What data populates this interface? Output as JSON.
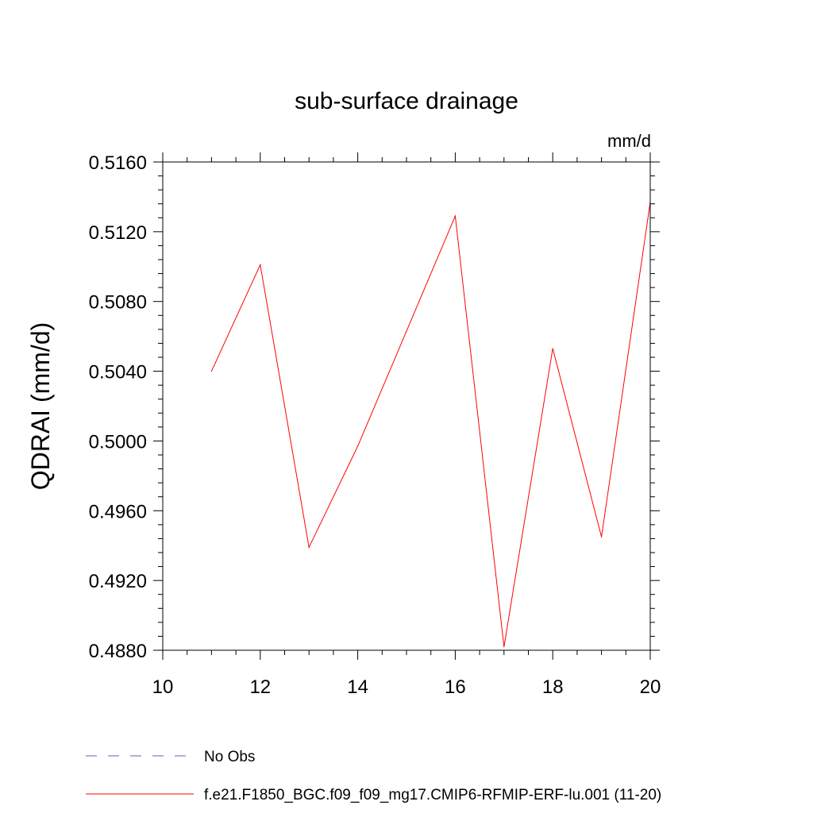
{
  "chart_data": {
    "type": "line",
    "title": "sub-surface drainage",
    "units_label": "mm/d",
    "ylabel": "QDRAI  (mm/d)",
    "xlabel": "",
    "xlim": [
      10,
      20
    ],
    "ylim": [
      0.488,
      0.516
    ],
    "x_ticks": [
      10,
      12,
      14,
      16,
      18,
      20
    ],
    "x_tick_labels": [
      "10",
      "12",
      "14",
      "16",
      "18",
      "20"
    ],
    "y_ticks": [
      0.488,
      0.492,
      0.496,
      0.5,
      0.504,
      0.508,
      0.512,
      0.516
    ],
    "y_tick_labels": [
      "0.4880",
      "0.4920",
      "0.4960",
      "0.5000",
      "0.5040",
      "0.5080",
      "0.5120",
      "0.5160"
    ],
    "grid": false,
    "legend_position": "bottom",
    "series": [
      {
        "name": "f.e21.F1850_BGC.f09_f09_mg17.CMIP6-RFMIP-ERF-lu.001 (11-20)",
        "color": "#ff0000",
        "style": "solid",
        "x": [
          11,
          12,
          13,
          14,
          15,
          16,
          17,
          18,
          19,
          20
        ],
        "y": [
          0.504,
          0.5101,
          0.4939,
          0.4997,
          0.5063,
          0.5129,
          0.4882,
          0.5053,
          0.4945,
          0.5137
        ]
      }
    ],
    "legend": [
      {
        "label": "No Obs",
        "color": "#6a5acd",
        "style": "dashed"
      },
      {
        "label": "f.e21.F1850_BGC.f09_f09_mg17.CMIP6-RFMIP-ERF-lu.001 (11-20)",
        "color": "#ff0000",
        "style": "solid"
      }
    ]
  }
}
